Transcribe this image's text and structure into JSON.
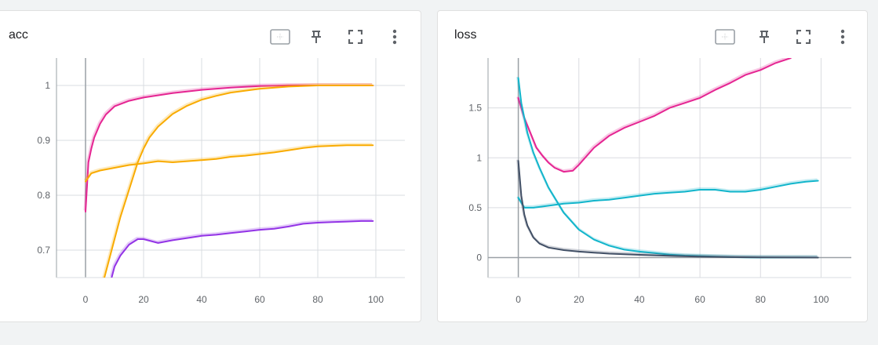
{
  "cards": [
    {
      "title": "acc",
      "toolbar": [
        "fit-domain-icon",
        "pin-icon",
        "fullscreen-icon",
        "more-vert-icon"
      ]
    },
    {
      "title": "loss",
      "toolbar": [
        "fit-domain-icon",
        "pin-icon",
        "fullscreen-icon",
        "more-vert-icon"
      ]
    }
  ],
  "colors": {
    "pink": "#e52592",
    "orange": "#f9ab00",
    "purple": "#9334e6",
    "cyan": "#12b5cb",
    "slate": "#425066",
    "grid": "#dadce0",
    "axis": "#9aa0a6"
  },
  "chart_data": [
    {
      "type": "line",
      "title": "acc",
      "xlabel": "",
      "ylabel": "",
      "xlim": [
        -10,
        110
      ],
      "ylim": [
        0.65,
        1.05
      ],
      "xticks": [
        0,
        20,
        40,
        60,
        80,
        100
      ],
      "xtick_labels": [
        "0",
        "20",
        "40",
        "60",
        "80",
        "100"
      ],
      "yticks": [
        0.7,
        0.8,
        0.9,
        1.0
      ],
      "ytick_labels": [
        "0.7",
        "0.8",
        "0.9",
        "1"
      ],
      "grid": true,
      "series": [
        {
          "color": "pink",
          "x": [
            0,
            1,
            2,
            3,
            5,
            7,
            10,
            15,
            20,
            30,
            40,
            50,
            60,
            70,
            80,
            90,
            99
          ],
          "y": [
            0.77,
            0.86,
            0.885,
            0.905,
            0.93,
            0.947,
            0.962,
            0.972,
            0.978,
            0.986,
            0.992,
            0.996,
            0.999,
            1.0,
            1.0,
            1.0,
            1.0
          ]
        },
        {
          "color": "orange",
          "x": [
            0,
            2,
            5,
            10,
            15,
            20,
            25,
            30,
            35,
            40,
            45,
            50,
            55,
            60,
            65,
            70,
            75,
            80,
            85,
            90,
            95,
            99
          ],
          "y": [
            0.825,
            0.84,
            0.845,
            0.85,
            0.855,
            0.858,
            0.862,
            0.86,
            0.862,
            0.864,
            0.866,
            0.87,
            0.872,
            0.875,
            0.878,
            0.882,
            0.886,
            0.889,
            0.89,
            0.891,
            0.891,
            0.891
          ]
        },
        {
          "color": "orange",
          "x": [
            6,
            8,
            10,
            12,
            15,
            18,
            20,
            22,
            25,
            30,
            35,
            40,
            45,
            50,
            60,
            70,
            80,
            90,
            99
          ],
          "y": [
            0.64,
            0.68,
            0.72,
            0.76,
            0.81,
            0.86,
            0.885,
            0.905,
            0.925,
            0.948,
            0.963,
            0.974,
            0.981,
            0.987,
            0.994,
            0.998,
            1.0,
            1.0,
            1.0
          ]
        },
        {
          "color": "purple",
          "x": [
            9,
            10,
            12,
            15,
            18,
            20,
            25,
            30,
            35,
            40,
            45,
            50,
            55,
            60,
            65,
            70,
            75,
            80,
            85,
            90,
            95,
            99
          ],
          "y": [
            0.65,
            0.67,
            0.69,
            0.71,
            0.72,
            0.72,
            0.713,
            0.718,
            0.722,
            0.726,
            0.728,
            0.731,
            0.734,
            0.737,
            0.739,
            0.743,
            0.748,
            0.75,
            0.751,
            0.752,
            0.753,
            0.753
          ]
        }
      ]
    },
    {
      "type": "line",
      "title": "loss",
      "xlabel": "",
      "ylabel": "",
      "xlim": [
        -10,
        110
      ],
      "ylim": [
        -0.2,
        2.0
      ],
      "xticks": [
        0,
        20,
        40,
        60,
        80,
        100
      ],
      "xtick_labels": [
        "0",
        "20",
        "40",
        "60",
        "80",
        "100"
      ],
      "yticks": [
        0,
        0.5,
        1.0,
        1.5
      ],
      "ytick_labels": [
        "0",
        "0.5",
        "1",
        "1.5"
      ],
      "grid": true,
      "series": [
        {
          "color": "pink",
          "x": [
            0,
            2,
            4,
            6,
            8,
            10,
            12,
            15,
            18,
            20,
            25,
            30,
            35,
            40,
            45,
            50,
            55,
            60,
            65,
            70,
            75,
            80,
            85,
            90
          ],
          "y": [
            1.6,
            1.4,
            1.25,
            1.1,
            1.02,
            0.95,
            0.9,
            0.86,
            0.87,
            0.93,
            1.1,
            1.22,
            1.3,
            1.36,
            1.42,
            1.5,
            1.55,
            1.6,
            1.68,
            1.75,
            1.83,
            1.88,
            1.95,
            2.0
          ]
        },
        {
          "color": "cyan",
          "x": [
            0,
            1,
            2,
            3,
            5,
            7,
            10,
            15,
            20,
            25,
            30,
            35,
            40,
            45,
            50,
            55,
            60,
            65,
            70,
            75,
            80,
            85,
            90,
            95,
            99
          ],
          "y": [
            1.8,
            1.55,
            1.4,
            1.25,
            1.05,
            0.9,
            0.7,
            0.45,
            0.28,
            0.18,
            0.12,
            0.08,
            0.06,
            0.045,
            0.03,
            0.02,
            0.015,
            0.01,
            0.005,
            0.002,
            0.0,
            0.0,
            0.0,
            0.0,
            0.0
          ]
        },
        {
          "color": "cyan",
          "x": [
            0,
            2,
            5,
            10,
            15,
            20,
            25,
            30,
            35,
            40,
            45,
            50,
            55,
            60,
            65,
            70,
            75,
            80,
            85,
            90,
            95,
            99
          ],
          "y": [
            0.6,
            0.5,
            0.5,
            0.52,
            0.54,
            0.55,
            0.57,
            0.58,
            0.6,
            0.62,
            0.64,
            0.65,
            0.66,
            0.68,
            0.68,
            0.66,
            0.66,
            0.68,
            0.71,
            0.74,
            0.76,
            0.77
          ]
        },
        {
          "color": "slate",
          "x": [
            0,
            1,
            2,
            3,
            5,
            7,
            10,
            15,
            20,
            25,
            30,
            40,
            50,
            60,
            70,
            80,
            90,
            99
          ],
          "y": [
            0.97,
            0.62,
            0.43,
            0.32,
            0.2,
            0.14,
            0.1,
            0.075,
            0.06,
            0.05,
            0.04,
            0.028,
            0.018,
            0.01,
            0.005,
            0.003,
            0.001,
            0.0
          ]
        }
      ]
    }
  ]
}
